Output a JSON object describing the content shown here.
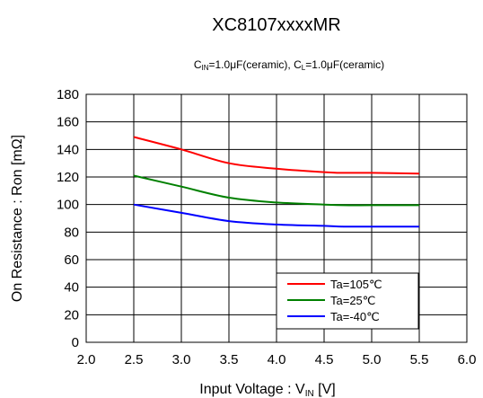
{
  "chart_data": {
    "type": "line",
    "title": "XC8107xxxxMR",
    "subtitle": {
      "cin_main": "C",
      "cin_sub": "IN",
      "cin_rest": "=1.0μF(ceramic), ",
      "cl_main": "C",
      "cl_sub": "L",
      "cl_rest": "=1.0μF(ceramic)"
    },
    "xlabel": {
      "main": "Input Voltage : V",
      "sub": "IN",
      "rest": " [V]"
    },
    "ylabel": "On Resistance : Ron [mΩ]",
    "xlim": [
      2.0,
      6.0
    ],
    "ylim": [
      0,
      180
    ],
    "xticks": [
      "2.0",
      "2.5",
      "3.0",
      "3.5",
      "4.0",
      "4.5",
      "5.0",
      "5.5",
      "6.0"
    ],
    "yticks": [
      "0",
      "20",
      "40",
      "60",
      "80",
      "100",
      "120",
      "140",
      "160",
      "180"
    ],
    "grid": true,
    "legend_position": "bottom-right",
    "series": [
      {
        "name": "Ta=105℃",
        "color": "#ff0000",
        "x": [
          2.5,
          3.0,
          3.5,
          4.0,
          4.5,
          4.7,
          5.0,
          5.5
        ],
        "y": [
          149,
          140,
          130,
          126,
          123.5,
          123,
          123,
          122.5
        ]
      },
      {
        "name": "Ta=25℃",
        "color": "#008000",
        "x": [
          2.5,
          3.0,
          3.5,
          4.0,
          4.5,
          4.7,
          5.0,
          5.5
        ],
        "y": [
          121,
          113,
          105,
          101.5,
          100,
          99.5,
          99.5,
          99.5
        ]
      },
      {
        "name": "Ta=-40℃",
        "color": "#0000ff",
        "x": [
          2.5,
          3.0,
          3.5,
          4.0,
          4.5,
          4.7,
          5.0,
          5.5
        ],
        "y": [
          100,
          94,
          88,
          85.5,
          84.5,
          84,
          84,
          84
        ]
      }
    ]
  }
}
